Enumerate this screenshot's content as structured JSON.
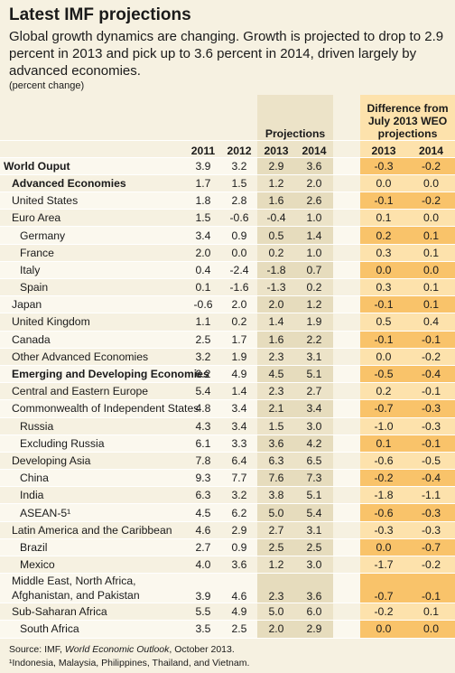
{
  "header": {
    "title": "Latest IMF projections",
    "subtitle": "Global growth dynamics are changing. Growth is projected to drop to 2.9 percent in 2013 and pick up to 3.6 percent in 2014, driven largely by advanced economies.",
    "unit_note": "(percent change)"
  },
  "table": {
    "group_headers": {
      "projections": "Projections",
      "difference": "Difference from July 2013 WEO projections"
    },
    "columns": [
      "2011",
      "2012",
      "2013",
      "2014",
      "2013",
      "2014"
    ],
    "rows": [
      {
        "label": "World Ouput",
        "level": 0,
        "bold": true,
        "values": [
          "3.9",
          "3.2",
          "2.9",
          "3.6",
          "-0.3",
          "-0.2"
        ]
      },
      {
        "label": "Advanced Economies",
        "level": 1,
        "bold": true,
        "values": [
          "1.7",
          "1.5",
          "1.2",
          "2.0",
          "0.0",
          "0.0"
        ]
      },
      {
        "label": "United States",
        "level": 1,
        "bold": false,
        "values": [
          "1.8",
          "2.8",
          "1.6",
          "2.6",
          "-0.1",
          "-0.2"
        ]
      },
      {
        "label": "Euro Area",
        "level": 1,
        "bold": false,
        "values": [
          "1.5",
          "-0.6",
          "-0.4",
          "1.0",
          "0.1",
          "0.0"
        ]
      },
      {
        "label": "Germany",
        "level": 2,
        "bold": false,
        "values": [
          "3.4",
          "0.9",
          "0.5",
          "1.4",
          "0.2",
          "0.1"
        ]
      },
      {
        "label": "France",
        "level": 2,
        "bold": false,
        "values": [
          "2.0",
          "0.0",
          "0.2",
          "1.0",
          "0.3",
          "0.1"
        ]
      },
      {
        "label": "Italy",
        "level": 2,
        "bold": false,
        "values": [
          "0.4",
          "-2.4",
          "-1.8",
          "0.7",
          "0.0",
          "0.0"
        ]
      },
      {
        "label": "Spain",
        "level": 2,
        "bold": false,
        "values": [
          "0.1",
          "-1.6",
          "-1.3",
          "0.2",
          "0.3",
          "0.1"
        ]
      },
      {
        "label": "Japan",
        "level": 1,
        "bold": false,
        "values": [
          "-0.6",
          "2.0",
          "2.0",
          "1.2",
          "-0.1",
          "0.1"
        ]
      },
      {
        "label": "United Kingdom",
        "level": 1,
        "bold": false,
        "values": [
          "1.1",
          "0.2",
          "1.4",
          "1.9",
          "0.5",
          "0.4"
        ]
      },
      {
        "label": "Canada",
        "level": 1,
        "bold": false,
        "values": [
          "2.5",
          "1.7",
          "1.6",
          "2.2",
          "-0.1",
          "-0.1"
        ]
      },
      {
        "label": "Other Advanced Economies",
        "level": 1,
        "bold": false,
        "values": [
          "3.2",
          "1.9",
          "2.3",
          "3.1",
          "0.0",
          "-0.2"
        ]
      },
      {
        "label": "Emerging and Developing Economies",
        "level": 1,
        "bold": true,
        "values": [
          "6.2",
          "4.9",
          "4.5",
          "5.1",
          "-0.5",
          "-0.4"
        ]
      },
      {
        "label": "Central and Eastern Europe",
        "level": 1,
        "bold": false,
        "values": [
          "5.4",
          "1.4",
          "2.3",
          "2.7",
          "0.2",
          "-0.1"
        ]
      },
      {
        "label": "Commonwealth of Independent States",
        "level": 1,
        "bold": false,
        "values": [
          "4.8",
          "3.4",
          "2.1",
          "3.4",
          "-0.7",
          "-0.3"
        ]
      },
      {
        "label": "Russia",
        "level": 2,
        "bold": false,
        "values": [
          "4.3",
          "3.4",
          "1.5",
          "3.0",
          "-1.0",
          "-0.3"
        ]
      },
      {
        "label": "Excluding Russia",
        "level": 2,
        "bold": false,
        "values": [
          "6.1",
          "3.3",
          "3.6",
          "4.2",
          "0.1",
          "-0.1"
        ]
      },
      {
        "label": "Developing Asia",
        "level": 1,
        "bold": false,
        "values": [
          "7.8",
          "6.4",
          "6.3",
          "6.5",
          "-0.6",
          "-0.5"
        ]
      },
      {
        "label": "China",
        "level": 2,
        "bold": false,
        "values": [
          "9.3",
          "7.7",
          "7.6",
          "7.3",
          "-0.2",
          "-0.4"
        ]
      },
      {
        "label": "India",
        "level": 2,
        "bold": false,
        "values": [
          "6.3",
          "3.2",
          "3.8",
          "5.1",
          "-1.8",
          "-1.1"
        ]
      },
      {
        "label": "ASEAN-5¹",
        "level": 2,
        "bold": false,
        "values": [
          "4.5",
          "6.2",
          "5.0",
          "5.4",
          "-0.6",
          "-0.3"
        ]
      },
      {
        "label": "Latin America and the Caribbean",
        "level": 1,
        "bold": false,
        "values": [
          "4.6",
          "2.9",
          "2.7",
          "3.1",
          "-0.3",
          "-0.3"
        ]
      },
      {
        "label": "Brazil",
        "level": 2,
        "bold": false,
        "values": [
          "2.7",
          "0.9",
          "2.5",
          "2.5",
          "0.0",
          "-0.7"
        ]
      },
      {
        "label": "Mexico",
        "level": 2,
        "bold": false,
        "values": [
          "4.0",
          "3.6",
          "1.2",
          "3.0",
          "-1.7",
          "-0.2"
        ]
      },
      {
        "label": "Middle East, North Africa, Afghanistan, and Pakistan",
        "level": 1,
        "bold": false,
        "values": [
          "3.9",
          "4.6",
          "2.3",
          "3.6",
          "-0.7",
          "-0.1"
        ]
      },
      {
        "label": "Sub-Saharan Africa",
        "level": 1,
        "bold": false,
        "values": [
          "5.5",
          "4.9",
          "5.0",
          "6.0",
          "-0.2",
          "0.1"
        ]
      },
      {
        "label": "South Africa",
        "level": 2,
        "bold": false,
        "values": [
          "3.5",
          "2.5",
          "2.0",
          "2.9",
          "0.0",
          "0.0"
        ]
      }
    ]
  },
  "footer": {
    "source": {
      "prefix": "Source: IMF, ",
      "publication": "World Economic Outlook",
      "suffix": ", October 2013."
    },
    "footnote": "¹Indonesia, Malaysia, Philippines, Thailand, and Vietnam."
  }
}
